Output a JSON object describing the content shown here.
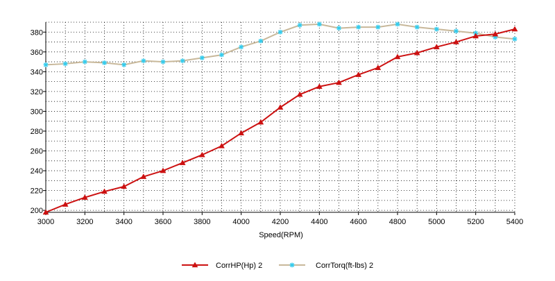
{
  "chart_data": {
    "type": "line",
    "xlabel": "Speed(RPM)",
    "ylabel": "",
    "xlim": [
      3000,
      5400
    ],
    "ylim": [
      198,
      390
    ],
    "x_ticks": [
      3000,
      3200,
      3400,
      3600,
      3800,
      4000,
      4200,
      4400,
      4600,
      4800,
      5000,
      5200,
      5400
    ],
    "y_ticks": [
      200,
      220,
      240,
      260,
      280,
      300,
      320,
      340,
      360,
      380
    ],
    "grid": true,
    "legend_position": "bottom",
    "x": [
      3000,
      3100,
      3200,
      3300,
      3400,
      3500,
      3600,
      3700,
      3800,
      3900,
      4000,
      4100,
      4200,
      4300,
      4400,
      4500,
      4600,
      4700,
      4800,
      4900,
      5000,
      5100,
      5200,
      5300,
      5400
    ],
    "series": [
      {
        "name": "CorrHP(Hp)  2",
        "color": "#cc1111",
        "marker": "triangle",
        "values": [
          198,
          206,
          213,
          219,
          224,
          234,
          240,
          248,
          256,
          265,
          278,
          289,
          304,
          317,
          325,
          329,
          337,
          344,
          355,
          359,
          365,
          370,
          376,
          378,
          383
        ]
      },
      {
        "name": "CorrTorq(ft-lbs)  2",
        "color": "#c8b89a",
        "marker_color": "#33ccee",
        "marker": "asterisk",
        "values": [
          347,
          348,
          350,
          349,
          347,
          351,
          350,
          351,
          354,
          357,
          365,
          371,
          380,
          387,
          388,
          384,
          385,
          385,
          388,
          385,
          383,
          381,
          379,
          375,
          373
        ]
      }
    ]
  }
}
